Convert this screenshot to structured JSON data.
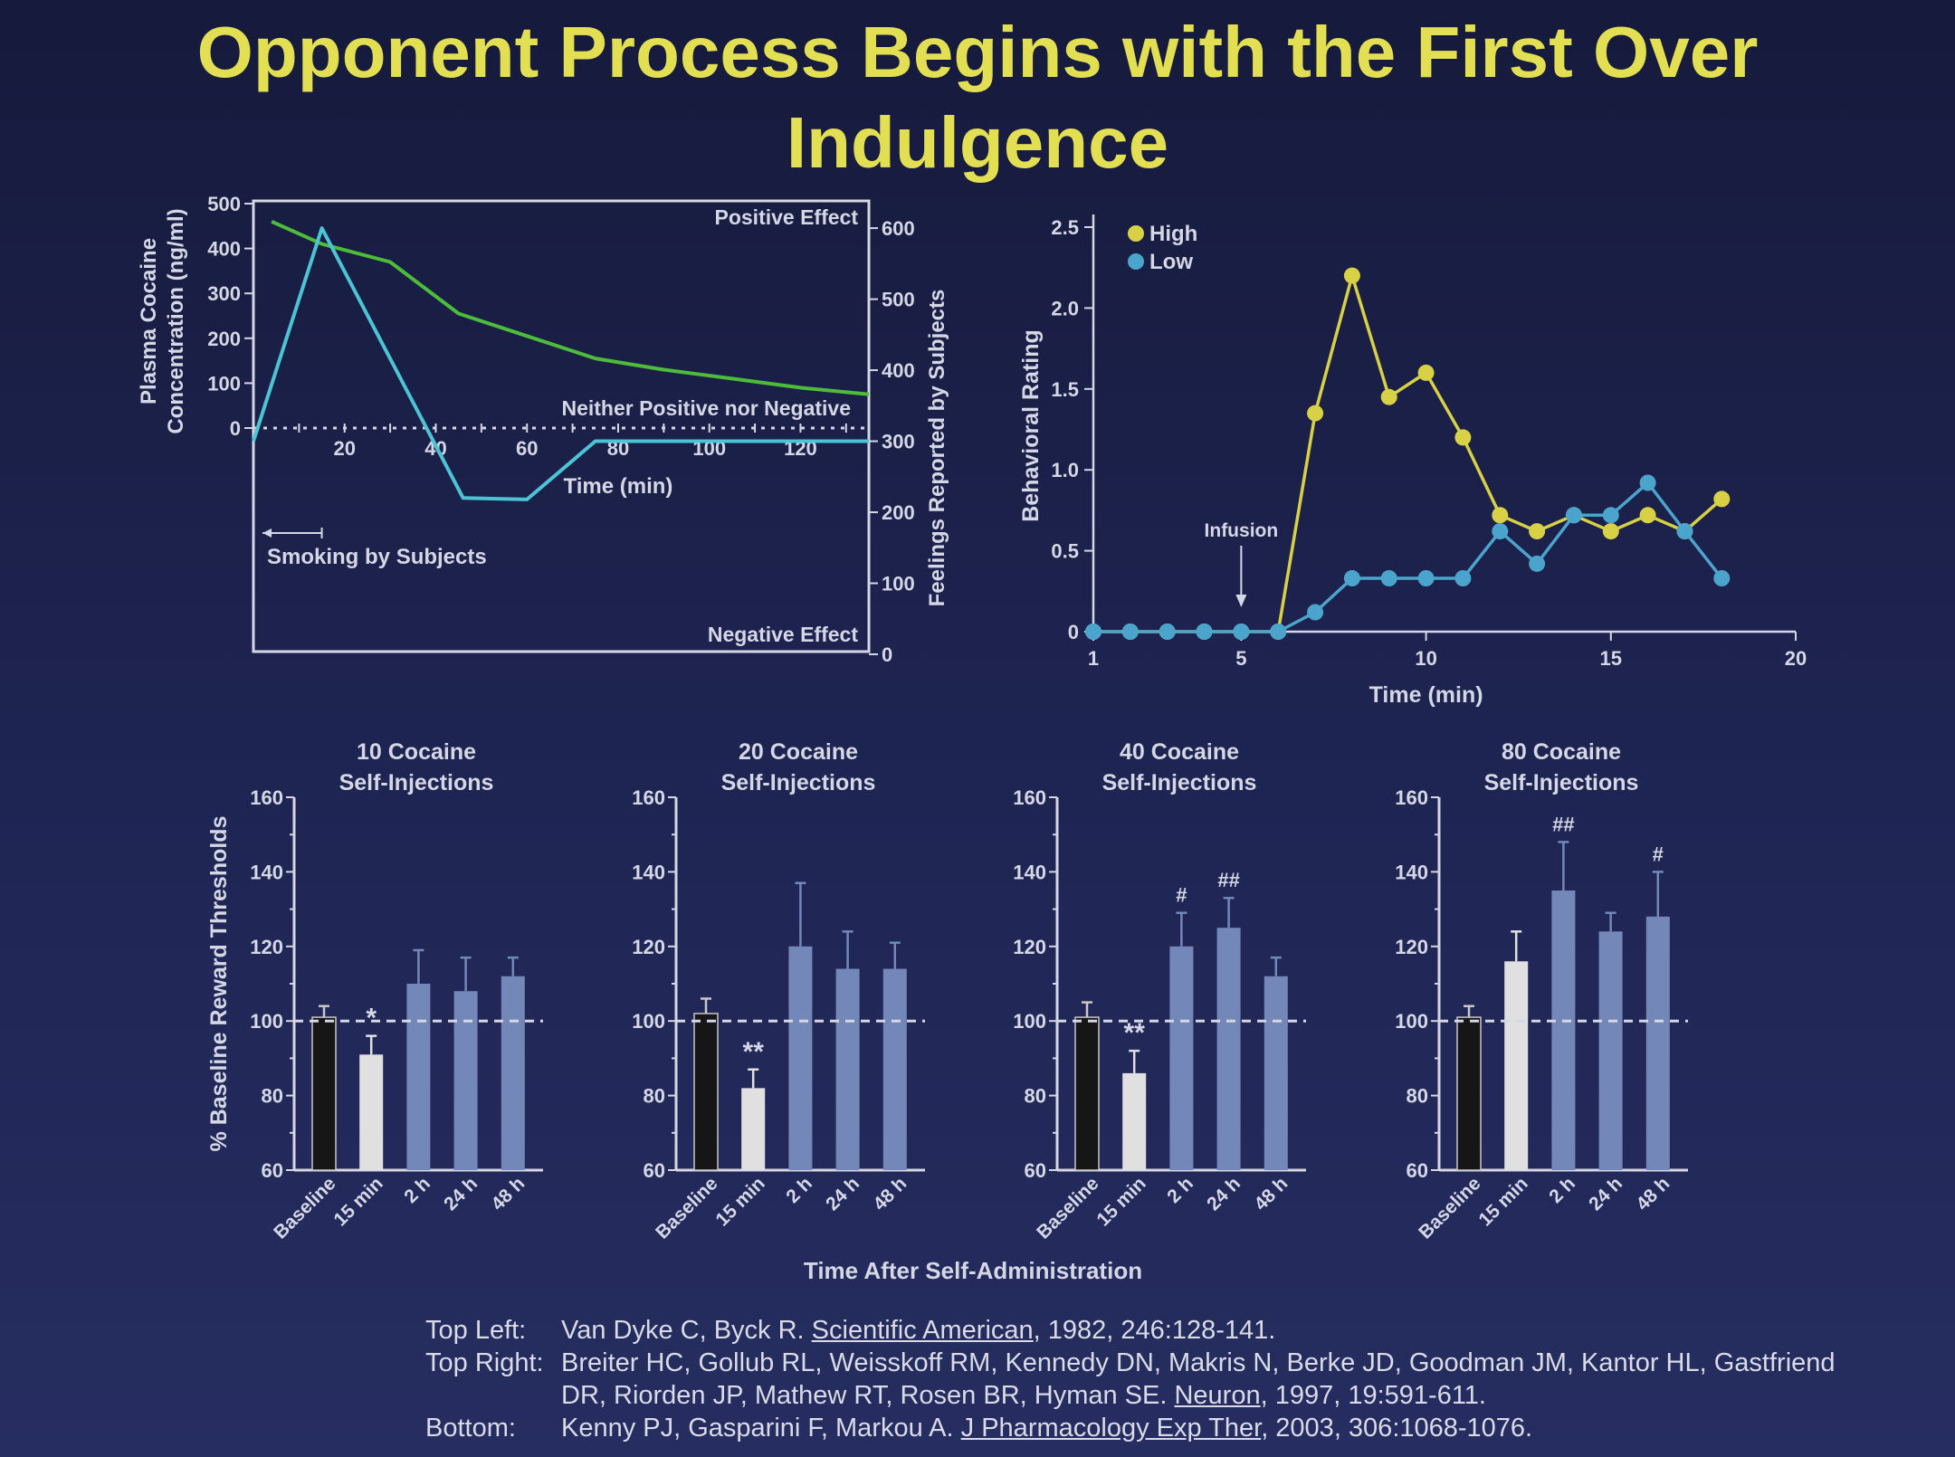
{
  "title": "Opponent Process Begins with the First Over Indulgence",
  "colors": {
    "title": "#e2e052",
    "axis": "#d4d7e4",
    "green": "#4cbc3a",
    "cyan": "#4cc4d4",
    "high": "#d8d045",
    "low": "#4ba4cc",
    "bar_baseline": "#161616",
    "bar_15min": "#e0e0e0",
    "bar_blue": "#7388b8"
  },
  "chart_data": [
    {
      "id": "top-left",
      "type": "line",
      "x_label": "Time (min)",
      "x_ticks": [
        20,
        40,
        60,
        80,
        100,
        120
      ],
      "xlim": [
        0,
        135
      ],
      "left_axis": {
        "label_line1": "Plasma Cocaine",
        "label_line2": "Concentration (ng/ml)",
        "ticks": [
          0,
          100,
          200,
          300,
          400,
          500
        ],
        "lim": [
          0,
          500
        ]
      },
      "right_axis": {
        "label": "Feelings Reported by Subjects",
        "ticks": [
          0,
          100,
          200,
          300,
          400,
          500,
          600
        ],
        "lim": [
          0,
          660
        ]
      },
      "annotations": {
        "positive": "Positive Effect",
        "negative": "Negative Effect",
        "neutral": "Neither Positive nor Negative",
        "smoking": "Smoking by Subjects"
      },
      "smoking_range": [
        2,
        15
      ],
      "series": [
        {
          "name": "Plasma Cocaine Concentration",
          "axis": "left",
          "color": "green",
          "x": [
            4,
            15,
            30,
            45,
            60,
            75,
            90,
            105,
            120,
            135
          ],
          "y": [
            460,
            410,
            370,
            255,
            205,
            155,
            130,
            110,
            90,
            75
          ]
        },
        {
          "name": "Feelings Reported by Subjects",
          "axis": "right",
          "color": "cyan",
          "x": [
            0,
            15,
            46,
            60,
            75,
            135
          ],
          "y": [
            300,
            600,
            220,
            218,
            300,
            300
          ]
        }
      ]
    },
    {
      "id": "top-right",
      "type": "line",
      "x_label": "Time (min)",
      "y_label": "Behavioral Rating",
      "x_ticks": [
        1,
        5,
        10,
        15,
        20
      ],
      "xlim": [
        1,
        20
      ],
      "y_ticks": [
        "0",
        "0.5",
        "1.0",
        "1.5",
        "2.0",
        "2.5"
      ],
      "ylim": [
        0,
        2.5
      ],
      "annotation": "Infusion",
      "infusion_x": 5,
      "legend": "top-left",
      "series": [
        {
          "name": "High",
          "color": "high",
          "x": [
            1,
            2,
            3,
            4,
            5,
            6,
            7,
            8,
            9,
            10,
            11,
            12,
            13,
            14,
            15,
            16,
            17,
            18
          ],
          "y": [
            0,
            0,
            0,
            0,
            0,
            0,
            1.35,
            2.2,
            1.45,
            1.6,
            1.2,
            0.72,
            0.62,
            0.72,
            0.62,
            0.72,
            0.62,
            0.82
          ]
        },
        {
          "name": "Low",
          "color": "low",
          "x": [
            1,
            2,
            3,
            4,
            5,
            6,
            7,
            8,
            9,
            10,
            11,
            12,
            13,
            14,
            15,
            16,
            17,
            18
          ],
          "y": [
            0,
            0,
            0,
            0,
            0,
            0,
            0.12,
            0.33,
            0.33,
            0.33,
            0.33,
            0.62,
            0.42,
            0.72,
            0.72,
            0.92,
            0.62,
            0.33
          ]
        }
      ]
    },
    {
      "id": "bottom",
      "type": "bar",
      "y_label": "% Baseline Reward Thresholds",
      "x_label": "Time After Self-Administration",
      "y_ticks": [
        60,
        80,
        100,
        120,
        140,
        160
      ],
      "ylim": [
        60,
        160
      ],
      "reference_line": 100,
      "categories": [
        "Baseline",
        "15 min",
        "2 h",
        "24 h",
        "48 h"
      ],
      "panels": [
        {
          "title_line1": "10 Cocaine",
          "title_line2": "Self-Injections",
          "values": [
            101,
            91,
            110,
            108,
            112
          ],
          "errors": [
            3,
            5,
            9,
            9,
            5
          ],
          "marks": [
            "",
            "*",
            "",
            "",
            ""
          ]
        },
        {
          "title_line1": "20 Cocaine",
          "title_line2": "Self-Injections",
          "values": [
            102,
            82,
            120,
            114,
            114
          ],
          "errors": [
            4,
            5,
            17,
            10,
            7
          ],
          "marks": [
            "",
            "**",
            "",
            "",
            ""
          ]
        },
        {
          "title_line1": "40 Cocaine",
          "title_line2": "Self-Injections",
          "values": [
            101,
            86,
            120,
            125,
            112
          ],
          "errors": [
            4,
            6,
            9,
            8,
            5
          ],
          "marks": [
            "",
            "**",
            "#",
            "##",
            ""
          ]
        },
        {
          "title_line1": "80 Cocaine",
          "title_line2": "Self-Injections",
          "values": [
            101,
            116,
            135,
            124,
            128
          ],
          "errors": [
            3,
            8,
            13,
            5,
            12
          ],
          "marks": [
            "",
            "",
            "##",
            "",
            "#"
          ]
        }
      ]
    }
  ],
  "references": {
    "top_left": {
      "label": "Top Left:",
      "pre": "Van Dyke C, Byck R. ",
      "journal": "Scientific American",
      "post": ", 1982, 246:128-141."
    },
    "top_right": {
      "label": "Top Right:",
      "pre": "Breiter HC, Gollub RL, Weisskoff RM, Kennedy DN, Makris N, Berke JD, Goodman JM, Kantor HL, Gastfriend DR, Riorden JP, Mathew RT, Rosen BR, Hyman SE. ",
      "journal": "Neuron",
      "post": ", 1997, 19:591-611."
    },
    "bottom": {
      "label": "Bottom:",
      "pre": "Kenny PJ, Gasparini F, Markou A. ",
      "journal": "J Pharmacology Exp Ther",
      "post": ", 2003, 306:1068-1076."
    }
  }
}
